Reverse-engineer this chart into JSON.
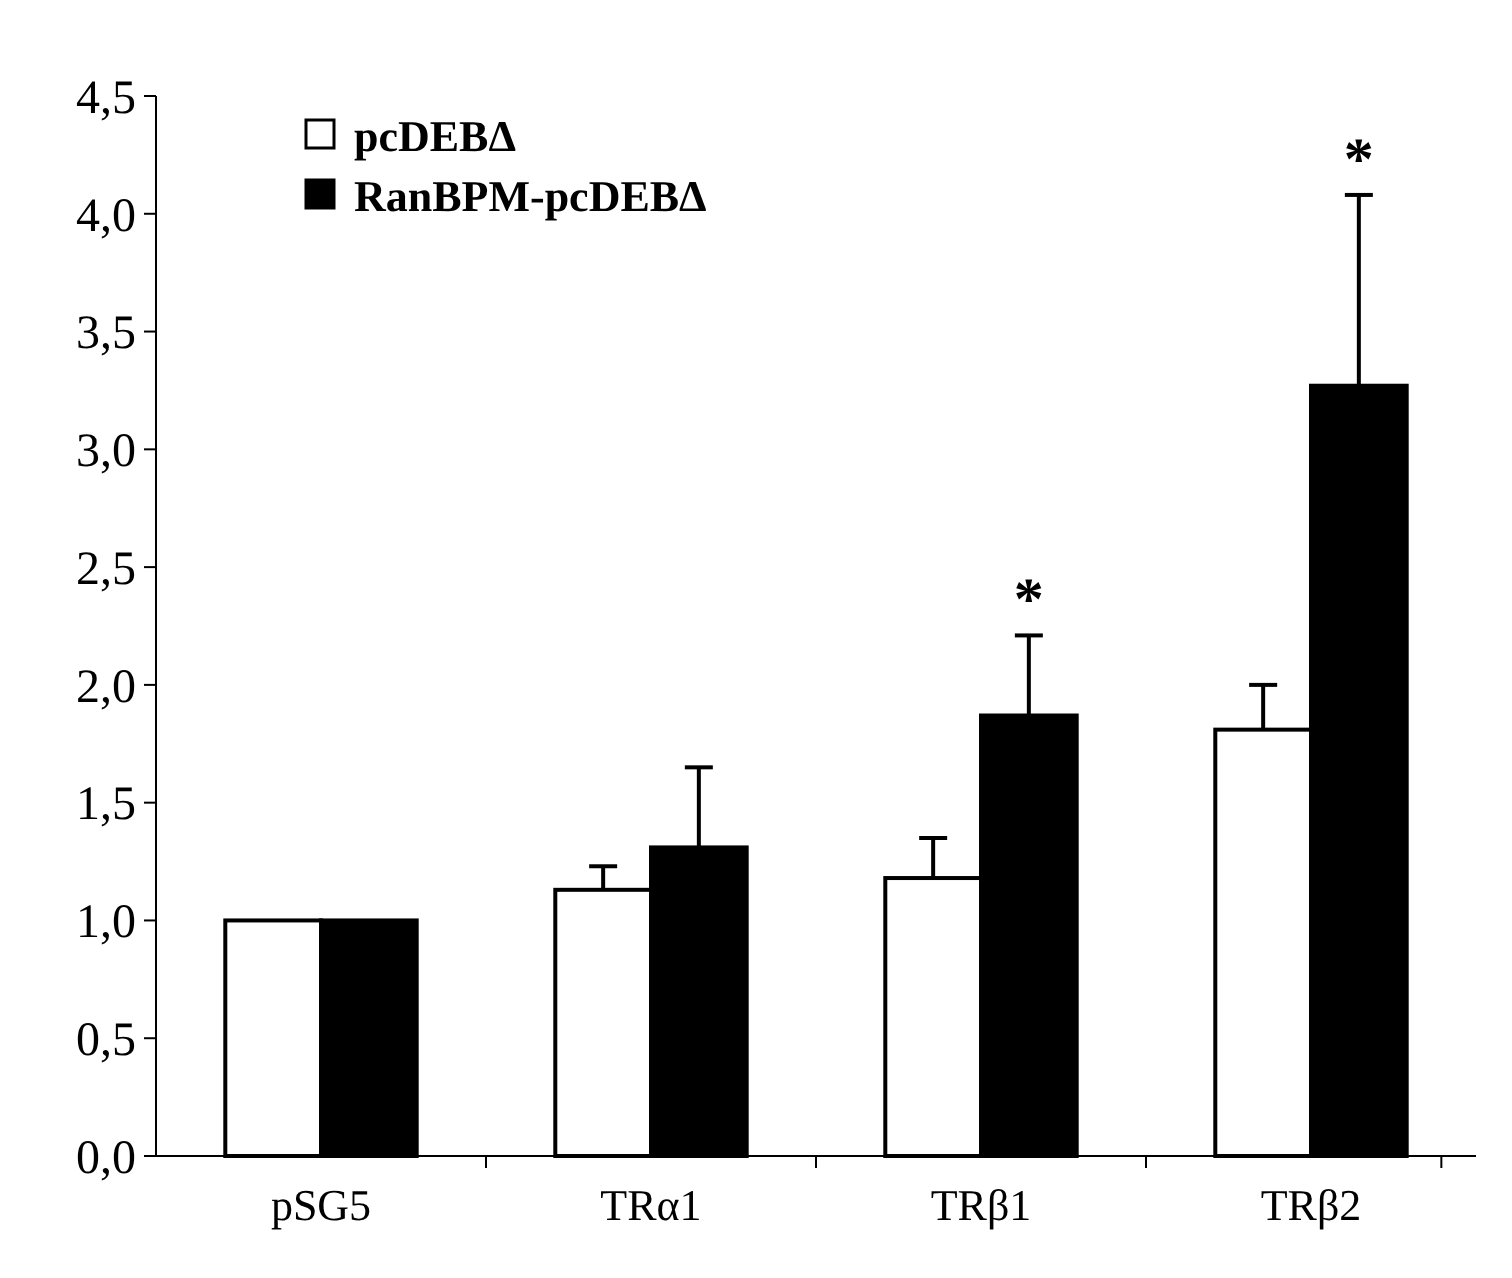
{
  "chart_data": {
    "type": "bar",
    "categories": [
      "pSG5",
      "TRα1",
      "TRβ1",
      "TRβ2"
    ],
    "series": [
      {
        "name": "pcDEBΔ",
        "color": "#ffffff",
        "values": [
          1.0,
          1.13,
          1.18,
          1.81
        ],
        "errors": [
          null,
          0.1,
          0.17,
          0.19
        ]
      },
      {
        "name": "RanBPM-pcDEBΔ",
        "color": "#000000",
        "values": [
          1.0,
          1.31,
          1.87,
          3.27
        ],
        "errors": [
          null,
          0.34,
          0.34,
          0.81
        ]
      }
    ],
    "ylim": [
      0,
      4.5
    ],
    "yticks": [
      {
        "value": 0,
        "label": "0,0"
      },
      {
        "value": 0.5,
        "label": "0,5"
      },
      {
        "value": 1,
        "label": "1,0"
      },
      {
        "value": 1.5,
        "label": "1,5"
      },
      {
        "value": 2,
        "label": "2,0"
      },
      {
        "value": 2.5,
        "label": "2,5"
      },
      {
        "value": 3,
        "label": "3,0"
      },
      {
        "value": 3.5,
        "label": "3,5"
      },
      {
        "value": 4,
        "label": "4,0"
      },
      {
        "value": 4.5,
        "label": "4,5"
      }
    ],
    "annotations": [
      "*",
      "*"
    ],
    "legend": "top left",
    "grid": false
  }
}
